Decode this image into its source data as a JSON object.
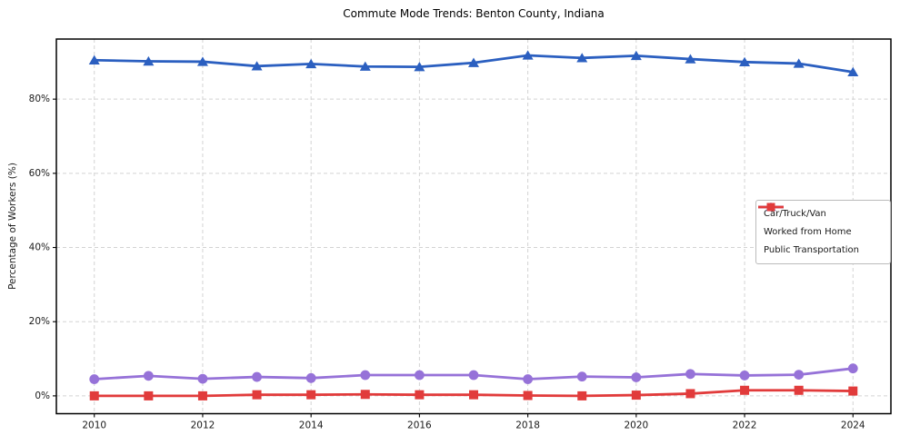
{
  "chart_data": {
    "type": "line",
    "title": "Commute Mode Trends: Benton County, Indiana",
    "xlabel": "",
    "ylabel": "Percentage of Workers (%)",
    "x": [
      2010,
      2011,
      2012,
      2013,
      2014,
      2015,
      2016,
      2017,
      2018,
      2019,
      2020,
      2021,
      2022,
      2023,
      2024
    ],
    "series": [
      {
        "name": "Car/Truck/Van",
        "color": "#2b5fc0",
        "marker": "triangle",
        "values": [
          90.5,
          90.2,
          90.1,
          88.9,
          89.5,
          88.8,
          88.7,
          89.8,
          91.8,
          91.1,
          91.7,
          90.8,
          90.0,
          89.6,
          87.3
        ]
      },
      {
        "name": "Worked from Home",
        "color": "#9672d8",
        "marker": "circle",
        "values": [
          4.5,
          5.4,
          4.6,
          5.1,
          4.8,
          5.6,
          5.6,
          5.6,
          4.5,
          5.2,
          5.0,
          5.9,
          5.5,
          5.7,
          7.4
        ]
      },
      {
        "name": "Public Transportation",
        "color": "#e13b3b",
        "marker": "square",
        "values": [
          0.0,
          0.0,
          0.0,
          0.3,
          0.3,
          0.4,
          0.3,
          0.3,
          0.1,
          0.0,
          0.2,
          0.6,
          1.5,
          1.5,
          1.3
        ]
      }
    ],
    "xticks": [
      2010,
      2012,
      2014,
      2016,
      2018,
      2020,
      2022,
      2024
    ],
    "yticks": [
      0,
      20,
      40,
      60,
      80
    ],
    "ytick_suffix": "%",
    "xlim": [
      2009.3,
      2024.7
    ],
    "ylim": [
      -4.8,
      96.2
    ],
    "grid": true,
    "legend_position": "right-middle"
  }
}
